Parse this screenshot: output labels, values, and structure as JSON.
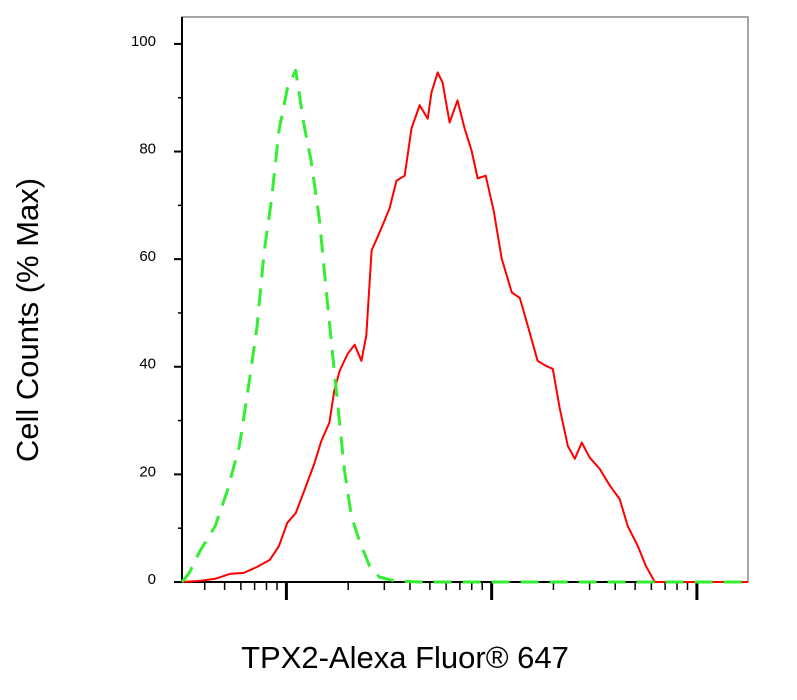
{
  "chart_data": {
    "type": "line",
    "x_label": "TPX2-Alexa Fluor® 647",
    "y_label": "Cell Counts (% Max)",
    "xscale": "log",
    "xlim": [
      31,
      17740
    ],
    "xticks": [
      100,
      1000,
      10000
    ],
    "xminorticks": [
      40,
      50,
      60,
      70,
      80,
      90,
      200,
      300,
      400,
      500,
      600,
      700,
      800,
      900,
      2000,
      3000,
      4000,
      5000,
      6000,
      7000,
      8000,
      9000
    ],
    "ylim": [
      0,
      105
    ],
    "yticks": [
      0,
      20,
      40,
      60,
      80,
      100
    ],
    "yminorticks": [
      10,
      30,
      50,
      70,
      90
    ],
    "grid": false,
    "series": [
      {
        "color": "#ff0000",
        "dashed": false,
        "x": [
          31,
          38,
          45,
          53,
          62,
          72,
          83,
          92,
          101,
          111,
          122,
          137,
          148,
          162,
          171,
          182,
          199,
          215,
          232,
          245,
          260,
          284,
          318,
          344,
          377,
          407,
          446,
          488,
          509,
          546,
          577,
          624,
          682,
          738,
          798,
          855,
          935,
          1023,
          1119,
          1253,
          1371,
          1500,
          1675,
          1832,
          1986,
          2148,
          2350,
          2541,
          2748,
          3006,
          3365,
          3767,
          4207,
          4603,
          5152,
          5636,
          6237,
          10350,
          17740
        ],
        "values": [
          0,
          0.2,
          0.6,
          1.5,
          1.7,
          2.8,
          4.1,
          6.7,
          11,
          12.8,
          16.9,
          22.1,
          26.2,
          29.6,
          35.5,
          39.3,
          42.4,
          44.1,
          41.1,
          45.8,
          61.6,
          64.9,
          69.4,
          74.6,
          75.5,
          84.3,
          88.6,
          86.1,
          91,
          94.7,
          92.8,
          85.4,
          89.5,
          84.3,
          80.2,
          75,
          75.5,
          69,
          60.1,
          53.8,
          52.8,
          47.6,
          41.1,
          40.2,
          39.6,
          32.2,
          25.3,
          22.9,
          25.9,
          23.1,
          21,
          17.9,
          15.4,
          10.4,
          6.7,
          3,
          0,
          0,
          0
        ]
      },
      {
        "color": "#33ee33",
        "dashed": true,
        "x": [
          31,
          33.6,
          38,
          45,
          51.5,
          59,
          66,
          72,
          78,
          84.5,
          92,
          101,
          111,
          122,
          132,
          145,
          158,
          173,
          192,
          207,
          227,
          254,
          284,
          336,
          446,
          1094,
          17740
        ],
        "values": [
          0,
          1.7,
          5.8,
          10.4,
          16.9,
          25.3,
          37.4,
          47.6,
          61.6,
          70.9,
          83.9,
          91.7,
          95.1,
          84.8,
          78.3,
          67.2,
          52.3,
          37.4,
          20.7,
          12.3,
          7.6,
          3,
          0.9,
          0.2,
          0,
          0,
          0
        ]
      }
    ]
  }
}
